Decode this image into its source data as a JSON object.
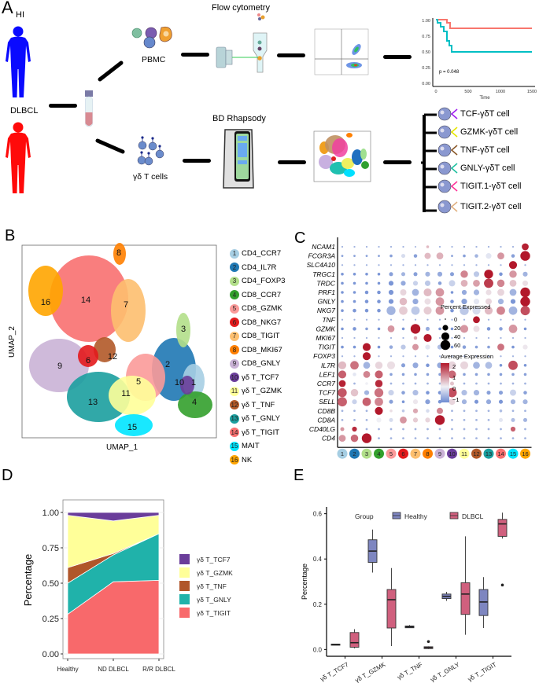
{
  "panels": {
    "A": "A",
    "B": "B",
    "C": "C",
    "D": "D",
    "E": "E"
  },
  "panelA": {
    "hi_label": "HI",
    "dlbcl_label": "DLBCL",
    "pbmc_label": "PBMC",
    "gd_label": "γδ T cells",
    "flow_label": "Flow cytometry",
    "bd_label": "BD Rhapsody",
    "km": {
      "p_value": "p = 0.048",
      "xlabel": "Time",
      "yticks": [
        "1.00",
        "0.75",
        "0.50",
        "0.25",
        "0.00"
      ],
      "xticks": [
        "0",
        "500",
        "1000",
        "1500"
      ],
      "colors": {
        "upper": "#f8766d",
        "lower": "#00bfc4"
      }
    },
    "subsets": [
      {
        "label": "TCF-γδT cell",
        "color": "#a020f0"
      },
      {
        "label": "GZMK-γδT cell",
        "color": "#e6e600"
      },
      {
        "label": "TNF-γδT cell",
        "color": "#8b5a2b"
      },
      {
        "label": "GNLY-γδT cell",
        "color": "#20c0a0"
      },
      {
        "label": "TIGIT.1-γδT cell",
        "color": "#ff3399"
      },
      {
        "label": "TIGIT.2-γδT cell",
        "color": "#e0b080"
      }
    ]
  },
  "panelB": {
    "xlabel": "UMAP_1",
    "ylabel": "UMAP_2",
    "clusters": [
      {
        "id": "1",
        "name": "CD4_CCR7",
        "color": "#a6cee3"
      },
      {
        "id": "2",
        "name": "CD4_IL7R",
        "color": "#1f78b4"
      },
      {
        "id": "3",
        "name": "CD4_FOXP3",
        "color": "#b2df8a"
      },
      {
        "id": "4",
        "name": "CD8_CCR7",
        "color": "#33a02c"
      },
      {
        "id": "5",
        "name": "CD8_GZMK",
        "color": "#fb9a99"
      },
      {
        "id": "6",
        "name": "CD8_NKG7",
        "color": "#e31a1c"
      },
      {
        "id": "7",
        "name": "CD8_TIGIT",
        "color": "#fdbf6f"
      },
      {
        "id": "8",
        "name": "CD8_MKI67",
        "color": "#ff7f00"
      },
      {
        "id": "9",
        "name": "CD8_GNLY",
        "color": "#cab2d6"
      },
      {
        "id": "10",
        "name": "γδ T_TCF7",
        "color": "#6a3d9a"
      },
      {
        "id": "11",
        "name": "γδ T_GZMK",
        "color": "#ffff99"
      },
      {
        "id": "12",
        "name": "γδ T_TNF",
        "color": "#b15928"
      },
      {
        "id": "13",
        "name": "γδ T_GNLY",
        "color": "#1b9e9e"
      },
      {
        "id": "14",
        "name": "γδ T_TIGIT",
        "color": "#f87070"
      },
      {
        "id": "15",
        "name": "MAIT",
        "color": "#00e5ff"
      },
      {
        "id": "16",
        "name": "NK",
        "color": "#ffa500"
      }
    ]
  },
  "chart_data": [
    {
      "type": "heatmap",
      "title": "Dot plot of marker genes",
      "genes": [
        "NCAM1",
        "FCGR3A",
        "SLC4A10",
        "TRGC1",
        "TRDC",
        "PRF1",
        "GNLY",
        "NKG7",
        "TNF",
        "GZMK",
        "MKI67",
        "TIGIT",
        "FOXP3",
        "IL7R",
        "LEF1",
        "CCR7",
        "TCF7",
        "SELL",
        "CD8B",
        "CD8A",
        "CD40LG",
        "CD4"
      ],
      "clusters": [
        "1",
        "2",
        "3",
        "4",
        "5",
        "6",
        "7",
        "8",
        "9",
        "10",
        "11",
        "12",
        "13",
        "14",
        "15",
        "16"
      ],
      "size_legend": {
        "title": "Percent Expressed",
        "ticks": [
          "0",
          "20",
          "40",
          "60"
        ]
      },
      "color_legend": {
        "title": "Average Expression",
        "ticks": [
          "2",
          "1",
          "0",
          "−1"
        ],
        "range": [
          -1.3,
          2.5
        ]
      },
      "avg_expression": [
        [
          -0.6,
          -0.6,
          -0.6,
          -0.6,
          -0.6,
          -0.6,
          -0.5,
          0.6,
          -0.6,
          -0.6,
          -0.6,
          -0.6,
          -0.6,
          -0.6,
          -0.6,
          2.3
        ],
        [
          -0.8,
          -0.8,
          -0.8,
          -0.8,
          -0.8,
          -0.2,
          -0.8,
          0.6,
          0.7,
          -0.8,
          -0.8,
          -0.6,
          -0.1,
          1.0,
          -0.8,
          2.4
        ],
        [
          -0.6,
          -0.6,
          -0.6,
          -0.6,
          -0.6,
          -0.6,
          -0.6,
          -0.6,
          -0.6,
          -0.6,
          -0.6,
          -0.6,
          -0.6,
          -0.6,
          2.4,
          -0.6
        ],
        [
          -0.9,
          -0.9,
          -0.9,
          -0.9,
          -0.8,
          -0.6,
          -0.8,
          -0.6,
          -0.7,
          -0.8,
          1.2,
          -0.4,
          2.4,
          -0.9,
          1.0,
          -0.6
        ],
        [
          -0.9,
          -0.9,
          -0.9,
          -0.9,
          -0.9,
          -0.7,
          -0.3,
          -0.4,
          -0.8,
          -0.3,
          0.7,
          0.9,
          2.0,
          1.2,
          0.5,
          0.2
        ],
        [
          -0.9,
          -0.9,
          -0.9,
          -0.9,
          -0.9,
          0.3,
          -0.6,
          0.6,
          1.0,
          -0.9,
          -0.7,
          -0.6,
          0.2,
          0.3,
          -0.6,
          2.4
        ],
        [
          -0.9,
          -0.9,
          -0.9,
          -0.9,
          -0.9,
          0.6,
          -0.7,
          0.2,
          1.0,
          -0.9,
          -0.8,
          -0.1,
          0.3,
          -0.6,
          -0.9,
          2.4
        ],
        [
          -0.9,
          -0.9,
          -0.9,
          -0.9,
          -0.6,
          0.4,
          -0.4,
          0.4,
          1.0,
          -0.9,
          -0.4,
          -0.2,
          0.6,
          1.2,
          -0.6,
          1.8
        ],
        [
          -0.6,
          -0.6,
          -0.6,
          -0.6,
          -0.6,
          -0.6,
          -0.6,
          -0.6,
          -0.6,
          -0.6,
          -0.6,
          2.4,
          -0.6,
          -0.6,
          -0.6,
          -0.6
        ],
        [
          -0.9,
          -0.9,
          -0.8,
          -0.9,
          1.0,
          -0.9,
          2.4,
          -0.7,
          -0.9,
          -0.9,
          1.0,
          0.2,
          -0.9,
          -0.8,
          1.0,
          -0.9
        ],
        [
          -0.6,
          -0.6,
          -0.6,
          -0.6,
          -0.6,
          -0.6,
          0.8,
          2.4,
          -0.6,
          -0.6,
          -0.6,
          -0.6,
          -0.6,
          -0.6,
          -0.6,
          -0.6
        ],
        [
          -0.9,
          -0.9,
          2.4,
          -0.9,
          -0.7,
          -0.4,
          1.0,
          -0.1,
          -0.5,
          -0.9,
          -0.8,
          -0.8,
          -0.8,
          1.4,
          -0.9,
          0.1
        ],
        [
          -0.6,
          -0.6,
          2.4,
          -0.6,
          -0.6,
          -0.6,
          -0.6,
          -0.6,
          -0.6,
          -0.6,
          -0.6,
          -0.6,
          -0.6,
          -0.6,
          -0.6,
          -0.6
        ],
        [
          0.6,
          1.4,
          -0.6,
          0.3,
          0.2,
          -0.8,
          -0.7,
          -0.9,
          -0.7,
          0.3,
          0.3,
          -0.6,
          -0.5,
          -0.9,
          1.8,
          -0.9
        ],
        [
          1.6,
          -0.1,
          1.2,
          1.6,
          -0.8,
          -0.8,
          -0.8,
          -0.8,
          -0.8,
          1.5,
          -0.8,
          -0.8,
          -0.8,
          -0.8,
          -0.8,
          -0.8
        ],
        [
          2.3,
          -0.6,
          0.0,
          2.2,
          -0.6,
          -0.6,
          -0.6,
          -0.6,
          -0.6,
          0.5,
          -0.6,
          -0.6,
          -0.6,
          -0.6,
          -0.6,
          -0.6
        ],
        [
          1.7,
          0.5,
          -0.6,
          1.4,
          -0.3,
          -0.8,
          -0.5,
          -0.9,
          -0.9,
          1.8,
          -0.5,
          -0.6,
          -0.8,
          -0.8,
          -0.3,
          -0.8
        ],
        [
          1.6,
          -0.3,
          1.6,
          1.2,
          -0.8,
          -0.9,
          0.1,
          -0.8,
          -0.9,
          0.3,
          -0.6,
          -0.9,
          -0.7,
          -0.9,
          -0.6,
          -0.6
        ],
        [
          -0.6,
          -0.6,
          -0.6,
          2.4,
          0.2,
          -0.4,
          0.8,
          -0.2,
          1.2,
          -0.6,
          -0.6,
          -0.6,
          -0.6,
          -0.5,
          -0.6,
          -0.6
        ],
        [
          -0.6,
          -0.6,
          -0.6,
          0.0,
          -0.2,
          1.0,
          0.4,
          0.3,
          2.4,
          -0.6,
          -0.6,
          -0.6,
          -0.6,
          -0.1,
          -0.5,
          -0.6
        ],
        [
          1.0,
          2.2,
          -0.6,
          -0.6,
          -0.6,
          -0.6,
          -0.6,
          -0.6,
          -0.6,
          -0.6,
          -0.6,
          -0.6,
          -0.6,
          -0.6,
          1.6,
          -0.6
        ],
        [
          1.0,
          1.5,
          2.4,
          -0.6,
          -0.6,
          -0.6,
          -0.6,
          -0.6,
          -0.6,
          -0.6,
          -0.6,
          -0.6,
          -0.6,
          -0.6,
          -0.6,
          -0.6
        ]
      ],
      "pct_expressed": [
        [
          2,
          2,
          2,
          2,
          2,
          2,
          2,
          5,
          2,
          2,
          2,
          2,
          2,
          2,
          2,
          30
        ],
        [
          3,
          3,
          3,
          3,
          5,
          10,
          8,
          25,
          30,
          3,
          5,
          8,
          20,
          30,
          8,
          60
        ],
        [
          2,
          2,
          2,
          2,
          2,
          2,
          2,
          2,
          2,
          2,
          2,
          2,
          2,
          2,
          40,
          2
        ],
        [
          5,
          5,
          5,
          5,
          10,
          10,
          10,
          15,
          15,
          10,
          35,
          20,
          50,
          8,
          35,
          15
        ],
        [
          5,
          5,
          5,
          5,
          15,
          15,
          15,
          20,
          8,
          25,
          30,
          30,
          55,
          35,
          30,
          20
        ],
        [
          5,
          5,
          8,
          8,
          15,
          25,
          30,
          40,
          45,
          5,
          15,
          20,
          20,
          30,
          30,
          60
        ],
        [
          5,
          5,
          8,
          8,
          15,
          35,
          20,
          25,
          45,
          8,
          20,
          20,
          25,
          20,
          15,
          60
        ],
        [
          5,
          8,
          8,
          8,
          50,
          45,
          45,
          40,
          45,
          8,
          50,
          40,
          40,
          45,
          45,
          55
        ],
        [
          2,
          2,
          2,
          2,
          2,
          2,
          2,
          2,
          2,
          2,
          2,
          30,
          2,
          2,
          2,
          2
        ],
        [
          5,
          8,
          5,
          5,
          30,
          5,
          60,
          10,
          5,
          5,
          40,
          25,
          8,
          8,
          45,
          5
        ],
        [
          2,
          2,
          2,
          2,
          2,
          2,
          8,
          40,
          2,
          2,
          2,
          2,
          2,
          2,
          2,
          2
        ],
        [
          5,
          5,
          40,
          5,
          8,
          15,
          25,
          15,
          15,
          5,
          8,
          5,
          5,
          30,
          5,
          15
        ],
        [
          2,
          2,
          40,
          2,
          2,
          2,
          2,
          2,
          2,
          2,
          2,
          2,
          2,
          2,
          2,
          2
        ],
        [
          40,
          45,
          30,
          35,
          40,
          10,
          20,
          8,
          20,
          40,
          40,
          30,
          30,
          5,
          55,
          5
        ],
        [
          40,
          8,
          30,
          40,
          5,
          5,
          5,
          5,
          5,
          40,
          5,
          5,
          5,
          5,
          5,
          5
        ],
        [
          30,
          3,
          5,
          35,
          3,
          3,
          3,
          3,
          3,
          10,
          3,
          3,
          3,
          3,
          3,
          3
        ],
        [
          50,
          35,
          15,
          50,
          20,
          8,
          20,
          8,
          8,
          55,
          20,
          20,
          10,
          10,
          25,
          8
        ],
        [
          55,
          15,
          45,
          45,
          10,
          5,
          15,
          15,
          8,
          25,
          15,
          10,
          15,
          10,
          15,
          15
        ],
        [
          3,
          3,
          3,
          40,
          5,
          5,
          15,
          8,
          25,
          3,
          3,
          3,
          3,
          5,
          3,
          3
        ],
        [
          3,
          3,
          3,
          15,
          10,
          30,
          15,
          15,
          60,
          3,
          3,
          3,
          3,
          10,
          10,
          10
        ],
        [
          10,
          15,
          3,
          3,
          3,
          3,
          3,
          3,
          3,
          3,
          3,
          3,
          3,
          3,
          15,
          3
        ],
        [
          30,
          35,
          60,
          3,
          3,
          3,
          3,
          3,
          3,
          3,
          3,
          3,
          3,
          3,
          3,
          3
        ]
      ]
    },
    {
      "type": "area",
      "title": "",
      "xlabel": "",
      "ylabel": "Percentage",
      "categories": [
        "Healthy",
        "ND DLBCL",
        "R/R DLBCL"
      ],
      "ylim": [
        0,
        1
      ],
      "yticks": [
        "0.00",
        "0.25",
        "0.50",
        "0.75",
        "1.00"
      ],
      "legend_position": "right",
      "series": [
        {
          "name": "γδ T_TIGIT",
          "color": "#f8696b",
          "values": [
            0.28,
            0.51,
            0.52
          ]
        },
        {
          "name": "γδ T_GNLY",
          "color": "#20b2aa",
          "values": [
            0.22,
            0.19,
            0.33
          ]
        },
        {
          "name": "γδ T_TNF",
          "color": "#b0562a",
          "values": [
            0.11,
            0.01,
            0.0
          ]
        },
        {
          "name": "γδ T_GZMK",
          "color": "#ffff99",
          "values": [
            0.37,
            0.23,
            0.13
          ]
        },
        {
          "name": "γδ T_TCF7",
          "color": "#6a3d9a",
          "values": [
            0.02,
            0.06,
            0.02
          ]
        }
      ],
      "legend_order": [
        "γδ T_TCF7",
        "γδ  T_GZMK",
        "γδ T_TNF",
        "γδ T_GNLY",
        "γδ T_TIGIT"
      ]
    },
    {
      "type": "box",
      "title": "",
      "xlabel": "",
      "ylabel": "Percentage",
      "ylim": [
        -0.03,
        0.63
      ],
      "yticks": [
        "0.0",
        "0.2",
        "0.4",
        "0.6"
      ],
      "legend_title": "Group",
      "legend_position": "top",
      "categories": [
        "γδ T_TCF7",
        "γδ T_GZMK",
        "γδ T_TNF",
        "γδ T_GNLY",
        "γδ T_TIGIT"
      ],
      "series": [
        {
          "name": "Healthy",
          "color": "#7e86c0",
          "boxes": [
            {
              "min": 0.02,
              "q1": 0.02,
              "median": 0.022,
              "q3": 0.024,
              "max": 0.024,
              "outliers": []
            },
            {
              "min": 0.34,
              "q1": 0.385,
              "median": 0.435,
              "q3": 0.485,
              "max": 0.53,
              "outliers": []
            },
            {
              "min": 0.095,
              "q1": 0.096,
              "median": 0.1,
              "q3": 0.104,
              "max": 0.108,
              "outliers": []
            },
            {
              "min": 0.215,
              "q1": 0.225,
              "median": 0.235,
              "q3": 0.245,
              "max": 0.255,
              "outliers": []
            },
            {
              "min": 0.095,
              "q1": 0.15,
              "median": 0.21,
              "q3": 0.265,
              "max": 0.32,
              "outliers": []
            }
          ]
        },
        {
          "name": "DLBCL",
          "color": "#d0607e",
          "boxes": [
            {
              "min": 0.005,
              "q1": 0.01,
              "median": 0.03,
              "q3": 0.075,
              "max": 0.09,
              "outliers": []
            },
            {
              "min": 0.015,
              "q1": 0.095,
              "median": 0.22,
              "q3": 0.265,
              "max": 0.36,
              "outliers": []
            },
            {
              "min": 0.002,
              "q1": 0.004,
              "median": 0.008,
              "q3": 0.012,
              "max": 0.014,
              "outliers": [
                0.035
              ]
            },
            {
              "min": 0.065,
              "q1": 0.155,
              "median": 0.245,
              "q3": 0.295,
              "max": 0.5,
              "outliers": []
            },
            {
              "min": 0.49,
              "q1": 0.5,
              "median": 0.555,
              "q3": 0.575,
              "max": 0.605,
              "outliers": [
                0.285
              ]
            }
          ]
        }
      ]
    }
  ]
}
